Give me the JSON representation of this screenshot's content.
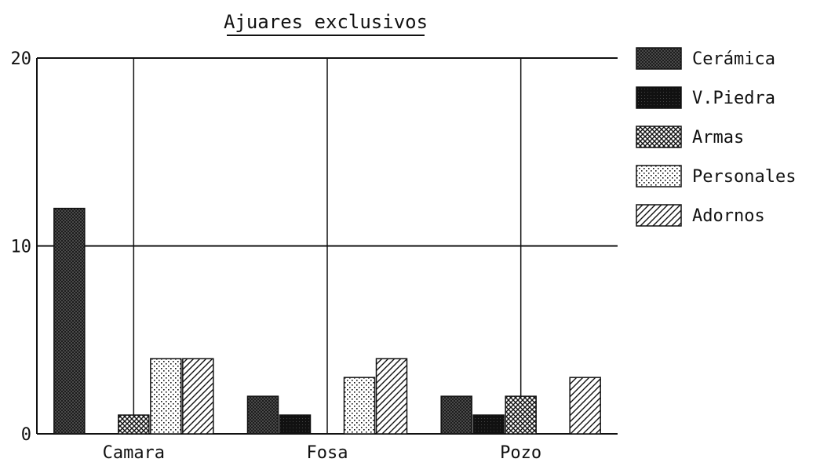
{
  "chart_data": {
    "type": "bar",
    "title": "Ajuares exclusivos",
    "categories": [
      "Camara",
      "Fosa",
      "Pozo"
    ],
    "series": [
      {
        "name": "Cerámica",
        "values": [
          12,
          2,
          2
        ]
      },
      {
        "name": "V.Piedra",
        "values": [
          0,
          1,
          1
        ]
      },
      {
        "name": "Armas",
        "values": [
          1,
          0,
          2
        ]
      },
      {
        "name": "Personales",
        "values": [
          4,
          3,
          0
        ]
      },
      {
        "name": "Adornos",
        "values": [
          4,
          4,
          3
        ]
      }
    ],
    "ylim": [
      0,
      20
    ],
    "yticks": [
      "0",
      "10",
      "20"
    ],
    "xlabel": "",
    "ylabel": "",
    "grid": true,
    "legend_position": "right",
    "colors": {
      "ink": "#111111",
      "ceramica_fill": "#3a3a3a",
      "vpiedra_fill": "#111111",
      "armas_fill": "#a9a9a9",
      "personales_fill": "#e7e7e7",
      "adornos_fill": "#ffffff"
    },
    "patterns": [
      "dense-dots",
      "solid",
      "crosshatch",
      "sparse-dots",
      "diagonal-lines"
    ]
  }
}
